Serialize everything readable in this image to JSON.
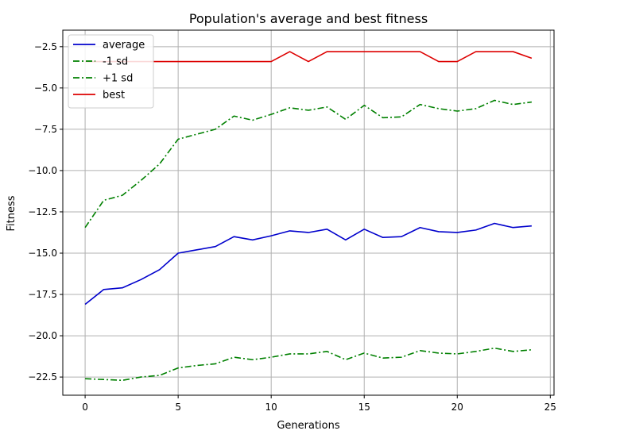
{
  "chart_data": {
    "type": "line",
    "title": "Population's average and best fitness",
    "xlabel": "Generations",
    "ylabel": "Fitness",
    "xlim": [
      -1.2,
      25.2
    ],
    "ylim": [
      -23.6,
      -1.5
    ],
    "xticks": [
      0,
      5,
      10,
      15,
      20,
      25
    ],
    "xtick_labels": [
      "0",
      "5",
      "10",
      "15",
      "20",
      "25"
    ],
    "yticks": [
      -22.5,
      -20.0,
      -17.5,
      -15.0,
      -12.5,
      -10.0,
      -7.5,
      -5.0,
      -2.5
    ],
    "ytick_labels": [
      "−22.5",
      "−20.0",
      "−17.5",
      "−15.0",
      "−12.5",
      "−10.0",
      "−7.5",
      "−5.0",
      "−2.5"
    ],
    "grid": true,
    "legend_position": "top-left",
    "x": [
      0,
      1,
      2,
      3,
      4,
      5,
      6,
      7,
      8,
      9,
      10,
      11,
      12,
      13,
      14,
      15,
      16,
      17,
      18,
      19,
      20,
      21,
      22,
      23,
      24
    ],
    "series": [
      {
        "name": "average",
        "color": "#0000cc",
        "dash": "solid",
        "values": [
          -18.1,
          -17.2,
          -17.1,
          -16.6,
          -16.0,
          -15.0,
          -14.8,
          -14.6,
          -14.0,
          -14.2,
          -13.95,
          -13.65,
          -13.75,
          -13.55,
          -14.2,
          -13.55,
          -14.05,
          -14.0,
          -13.45,
          -13.7,
          -13.75,
          -13.6,
          -13.2,
          -13.45,
          -13.35
        ]
      },
      {
        "name": "-1 sd",
        "color": "#008000",
        "dash": "dashdot",
        "values": [
          -13.45,
          -11.8,
          -11.5,
          -10.6,
          -9.6,
          -8.1,
          -7.8,
          -7.5,
          -6.7,
          -6.95,
          -6.6,
          -6.2,
          -6.35,
          -6.15,
          -6.9,
          -6.05,
          -6.8,
          -6.75,
          -6.0,
          -6.25,
          -6.4,
          -6.25,
          -5.75,
          -6.0,
          -5.85
        ]
      },
      {
        "name": "+1 sd",
        "color": "#008000",
        "dash": "dashdot",
        "values": [
          -22.6,
          -22.65,
          -22.7,
          -22.5,
          -22.4,
          -21.95,
          -21.8,
          -21.7,
          -21.3,
          -21.45,
          -21.3,
          -21.1,
          -21.1,
          -20.95,
          -21.45,
          -21.05,
          -21.35,
          -21.3,
          -20.9,
          -21.05,
          -21.1,
          -20.95,
          -20.75,
          -20.95,
          -20.85
        ]
      },
      {
        "name": "best",
        "color": "#dd0000",
        "dash": "solid",
        "values": [
          -3.4,
          -3.4,
          -3.4,
          -3.4,
          -3.4,
          -3.4,
          -3.4,
          -3.4,
          -3.4,
          -3.4,
          -3.4,
          -2.8,
          -3.4,
          -2.8,
          -2.8,
          -2.8,
          -2.8,
          -2.8,
          -2.8,
          -3.4,
          -3.4,
          -2.8,
          -2.8,
          -2.8,
          -3.2
        ]
      }
    ]
  }
}
